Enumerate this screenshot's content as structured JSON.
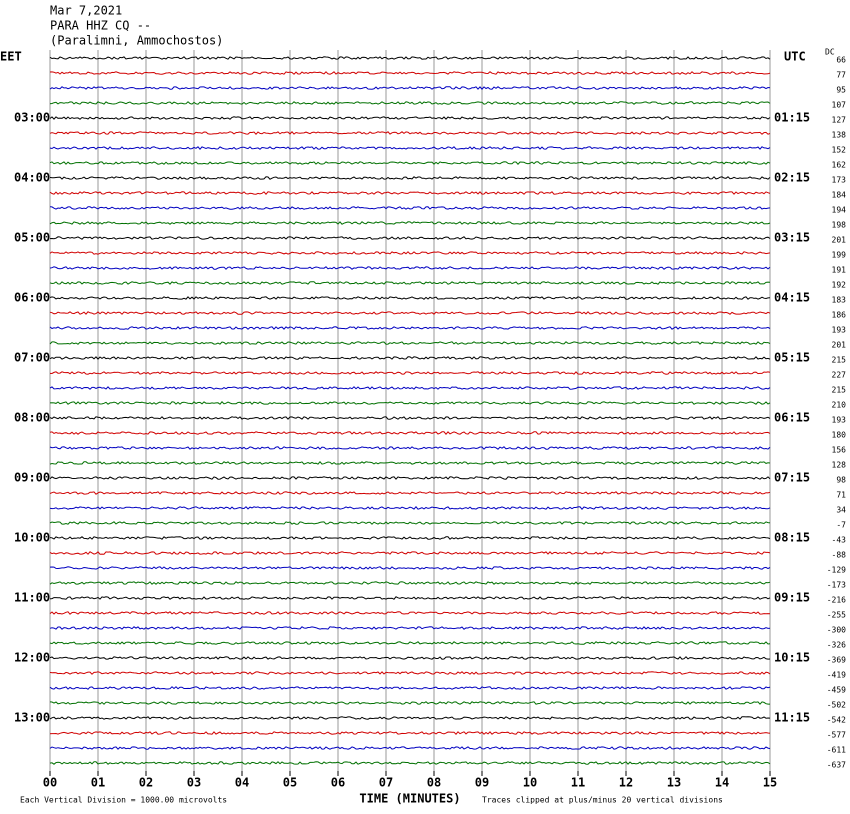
{
  "chart_data": {
    "type": "helicorder",
    "title_lines": [
      "Mar 7,2021",
      "PARA HHZ CQ --",
      "(Paralimni, Ammochostos)"
    ],
    "left_zone": "EET",
    "right_zone": "UTC",
    "dc_header": "DC",
    "left_labels": [
      "03:00",
      "04:00",
      "05:00",
      "06:00",
      "07:00",
      "08:00",
      "09:00",
      "10:00",
      "11:00",
      "12:00",
      "13:00"
    ],
    "right_labels": [
      "01:15",
      "02:15",
      "03:15",
      "04:15",
      "05:15",
      "06:15",
      "07:15",
      "08:15",
      "09:15",
      "10:15",
      "11:15"
    ],
    "dc_values": [
      66,
      77,
      95,
      107,
      127,
      138,
      152,
      162,
      173,
      184,
      194,
      198,
      201,
      199,
      191,
      192,
      183,
      186,
      193,
      201,
      215,
      227,
      215,
      210,
      193,
      180,
      156,
      128,
      98,
      71,
      34,
      -7,
      -43,
      -88,
      -129,
      -173,
      -216,
      -255,
      -300,
      -326,
      -369,
      -419,
      -459,
      -502,
      -542,
      -577,
      -611,
      -637
    ],
    "colors": [
      "#000000",
      "#d00000",
      "#0000c0",
      "#007000"
    ],
    "xlim": [
      0,
      15
    ],
    "xticks": [
      {
        "value": 0,
        "label": "00"
      },
      {
        "value": 1,
        "label": "01"
      },
      {
        "value": 2,
        "label": "02"
      },
      {
        "value": 3,
        "label": "03"
      },
      {
        "value": 4,
        "label": "04"
      },
      {
        "value": 5,
        "label": "05"
      },
      {
        "value": 6,
        "label": "06"
      },
      {
        "value": 7,
        "label": "07"
      },
      {
        "value": 8,
        "label": "08"
      },
      {
        "value": 9,
        "label": "09"
      },
      {
        "value": 10,
        "label": "10"
      },
      {
        "value": 11,
        "label": "11"
      },
      {
        "value": 12,
        "label": "12"
      },
      {
        "value": 13,
        "label": "13"
      },
      {
        "value": 14,
        "label": "14"
      },
      {
        "value": 15,
        "label": "15"
      }
    ],
    "xlabel": "TIME (MINUTES)",
    "footnote_left": "Each Vertical Division = 1000.00 microvolts",
    "footnote_right": "Traces clipped at plus/minus 20 vertical divisions"
  }
}
